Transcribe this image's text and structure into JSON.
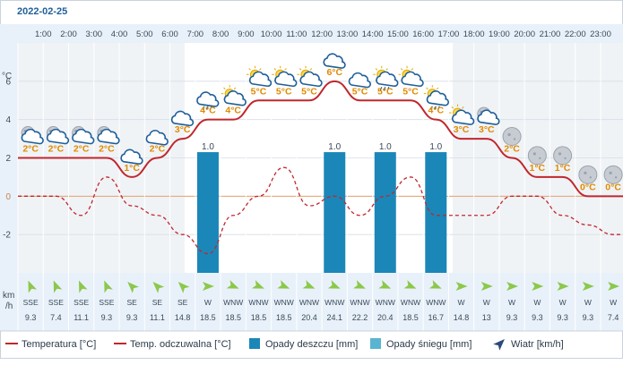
{
  "date": "2022-02-25",
  "y_unit": "°C",
  "wind_unit_line1": "km",
  "wind_unit_line2": "/h",
  "legend": [
    {
      "label": "Temperatura [°C]",
      "kind": "line-solid",
      "color": "#c0272d"
    },
    {
      "label": "Temp. odczuwalna [°C]",
      "kind": "line-dashed",
      "color": "#c0272d"
    },
    {
      "label": "Opady deszczu [mm]",
      "kind": "box",
      "color": "#1a87b8"
    },
    {
      "label": "Opady śniegu [mm]",
      "kind": "box",
      "color": "#5ab4d0"
    },
    {
      "label": "Wiatr [km/h]",
      "kind": "arrow",
      "color": "#2a4a7a"
    }
  ],
  "colors": {
    "temperature": "#c0272d",
    "feels_like": "#c0272d",
    "rain": "#1a87b8",
    "snow": "#5ab4d0",
    "wind_arrow": "#8cc84b",
    "temp_label": "#e08a00",
    "grid": "#d6dde6",
    "band": "#f0f3f6",
    "zero_line": "#e7a36b"
  },
  "chart_data": {
    "type": "line",
    "hours": [
      "1:00",
      "2:00",
      "3:00",
      "4:00",
      "5:00",
      "6:00",
      "7:00",
      "8:00",
      "9:00",
      "10:00",
      "11:00",
      "12:00",
      "13:00",
      "14:00",
      "15:00",
      "16:00",
      "17:00",
      "18:00",
      "19:00",
      "20:00",
      "21:00",
      "22:00",
      "23:00"
    ],
    "ylim": [
      -4,
      8
    ],
    "yticks": [
      -2,
      0,
      2,
      4,
      6
    ],
    "temperature": [
      2,
      2,
      2,
      2,
      1,
      2,
      3,
      4,
      4,
      5,
      5,
      5,
      6,
      5,
      5,
      5,
      4,
      3,
      3,
      2,
      1,
      1,
      0,
      0
    ],
    "temperature_labels": [
      "2°C",
      "2°C",
      "2°C",
      "2°C",
      "1°C",
      "2°C",
      "3°C",
      "4°C",
      "4°C",
      "5°C",
      "5°C",
      "5°C",
      "6°C",
      "5°C",
      "5°C",
      "5°C",
      "4°C",
      "3°C",
      "3°C",
      "2°C",
      "1°C",
      "1°C",
      "0°C",
      "0°C"
    ],
    "feels_like": [
      0,
      0,
      -1,
      1,
      -0.5,
      -1,
      -2,
      -3,
      -1,
      0,
      1.5,
      -0.5,
      0,
      -1,
      0,
      1,
      -1,
      -1,
      -1,
      0,
      0,
      -1,
      -1.5,
      -2
    ],
    "rain": [
      0,
      0,
      0,
      0,
      0,
      0,
      0,
      1.0,
      0,
      0,
      0,
      0,
      1.0,
      0,
      1.0,
      0,
      1.0,
      0,
      0,
      0,
      0,
      0,
      0,
      0
    ],
    "rain_labels": [
      "",
      "",
      "",
      "",
      "",
      "",
      "",
      "1.0",
      "",
      "",
      "",
      "",
      "1.0",
      "",
      "1.0",
      "",
      "1.0",
      "",
      "",
      "",
      "",
      "",
      "",
      ""
    ],
    "weather_icons": [
      "moon-cloud",
      "moon-cloud",
      "moon-cloud",
      "moon-cloud",
      "cloud",
      "cloud",
      "cloud",
      "rain-cloud",
      "sun-cloud",
      "sun-cloud",
      "sun-cloud",
      "sun-cloud",
      "cloud",
      "cloud",
      "rain-sun-cloud",
      "sun-cloud",
      "rain-sun-cloud",
      "sun-cloud",
      "moon-cloud",
      "moon",
      "moon",
      "moon",
      "moon",
      "moon"
    ],
    "wind_directions": [
      "SSE",
      "SSE",
      "SSE",
      "SSE",
      "SE",
      "SE",
      "SE",
      "W",
      "WNW",
      "WNW",
      "WNW",
      "WNW",
      "WNW",
      "WNW",
      "WNW",
      "WNW",
      "WNW",
      "W",
      "W",
      "W",
      "W",
      "W",
      "W",
      "W"
    ],
    "wind_speeds": [
      "9.3",
      "7.4",
      "11.1",
      "9.3",
      "9.3",
      "11.1",
      "14.8",
      "18.5",
      "18.5",
      "18.5",
      "18.5",
      "20.4",
      "24.1",
      "22.2",
      "20.4",
      "18.5",
      "16.7",
      "14.8",
      "13",
      "9.3",
      "9.3",
      "9.3",
      "9.3",
      "7.4"
    ]
  }
}
